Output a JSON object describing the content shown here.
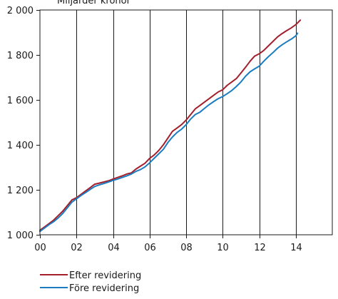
{
  "chart_data": {
    "type": "line",
    "unit_label": "Miljarder kronor",
    "x_range": [
      0,
      16
    ],
    "x_ticks": [
      0,
      2,
      4,
      6,
      8,
      10,
      12,
      14
    ],
    "x_tick_labels": [
      "00",
      "02",
      "04",
      "06",
      "08",
      "10",
      "12",
      "14"
    ],
    "y_range": [
      1000,
      2000
    ],
    "y_ticks": [
      1000,
      1200,
      1400,
      1600,
      1800,
      2000
    ],
    "y_tick_labels": [
      "1 000",
      "1 200",
      "1 400",
      "1 600",
      "1 800",
      "2 000"
    ],
    "grid": "vertical",
    "legend_position": "bottom-left",
    "series": [
      {
        "name": "Efter revidering",
        "color": "#a31f2c",
        "x": [
          0.0,
          0.25,
          0.5,
          0.75,
          1.0,
          1.25,
          1.5,
          1.75,
          2.0,
          2.25,
          2.5,
          2.75,
          3.0,
          3.25,
          3.5,
          3.75,
          4.0,
          4.25,
          4.5,
          4.75,
          5.0,
          5.25,
          5.5,
          5.75,
          6.0,
          6.25,
          6.5,
          6.75,
          7.0,
          7.25,
          7.5,
          7.75,
          8.0,
          8.25,
          8.5,
          8.75,
          9.0,
          9.25,
          9.5,
          9.75,
          10.0,
          10.25,
          10.5,
          10.75,
          11.0,
          11.25,
          11.5,
          11.75,
          12.0,
          12.25,
          12.5,
          12.75,
          13.0,
          13.25,
          13.5,
          13.75,
          14.0,
          14.25
        ],
        "values": [
          1020,
          1035,
          1050,
          1065,
          1085,
          1105,
          1130,
          1155,
          1165,
          1180,
          1195,
          1210,
          1225,
          1230,
          1235,
          1240,
          1248,
          1255,
          1262,
          1270,
          1275,
          1292,
          1305,
          1318,
          1340,
          1355,
          1375,
          1400,
          1430,
          1460,
          1475,
          1490,
          1510,
          1535,
          1560,
          1575,
          1590,
          1605,
          1620,
          1635,
          1645,
          1665,
          1680,
          1695,
          1720,
          1745,
          1772,
          1795,
          1805,
          1820,
          1840,
          1860,
          1880,
          1895,
          1908,
          1920,
          1935,
          1955
        ]
      },
      {
        "name": "Före revidering",
        "color": "#1b7cc0",
        "x": [
          0.0,
          0.25,
          0.5,
          0.75,
          1.0,
          1.25,
          1.5,
          1.75,
          2.0,
          2.25,
          2.5,
          2.75,
          3.0,
          3.25,
          3.5,
          3.75,
          4.0,
          4.25,
          4.5,
          4.75,
          5.0,
          5.25,
          5.5,
          5.75,
          6.0,
          6.25,
          6.5,
          6.75,
          7.0,
          7.25,
          7.5,
          7.75,
          8.0,
          8.25,
          8.5,
          8.75,
          9.0,
          9.25,
          9.5,
          9.75,
          10.0,
          10.25,
          10.5,
          10.75,
          11.0,
          11.25,
          11.5,
          11.75,
          12.0,
          12.25,
          12.5,
          12.75,
          13.0,
          13.25,
          13.5,
          13.75,
          14.0,
          14.1
        ],
        "values": [
          1015,
          1030,
          1045,
          1058,
          1075,
          1095,
          1120,
          1145,
          1160,
          1175,
          1188,
          1202,
          1215,
          1222,
          1228,
          1235,
          1242,
          1248,
          1255,
          1262,
          1270,
          1282,
          1290,
          1302,
          1320,
          1340,
          1360,
          1380,
          1410,
          1435,
          1455,
          1470,
          1490,
          1515,
          1535,
          1545,
          1562,
          1578,
          1592,
          1605,
          1615,
          1628,
          1642,
          1660,
          1680,
          1705,
          1725,
          1738,
          1750,
          1772,
          1792,
          1810,
          1830,
          1845,
          1858,
          1870,
          1885,
          1897
        ]
      }
    ]
  }
}
